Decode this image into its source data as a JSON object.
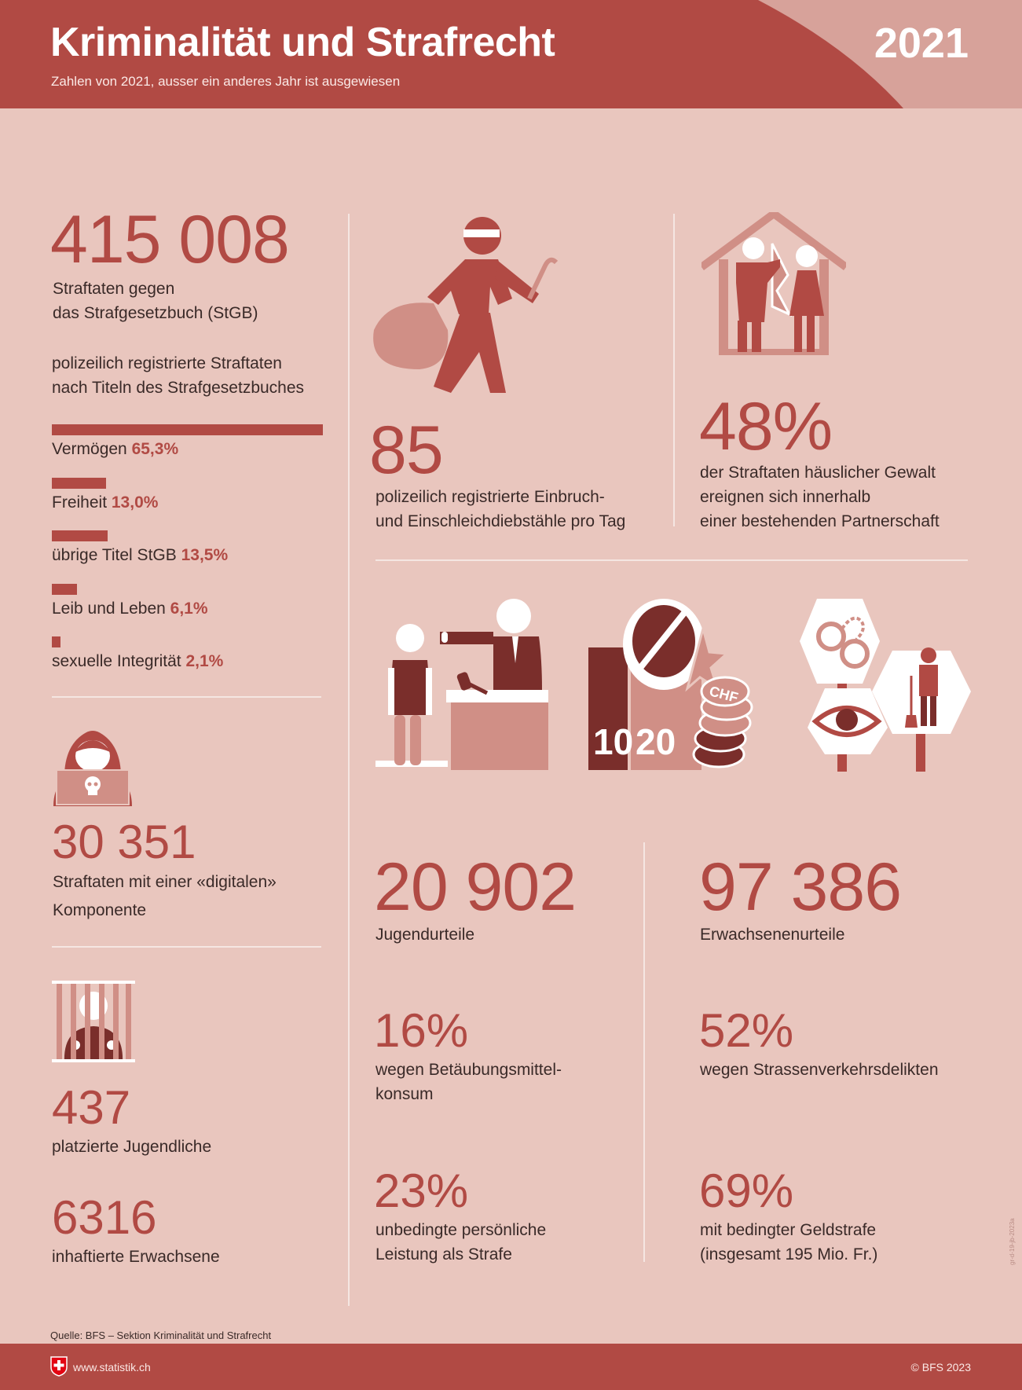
{
  "header": {
    "title": "Kriminalität und Strafrecht",
    "subtitle": "Zahlen von 2021, ausser ein anderes Jahr ist ausgewiesen",
    "year": "2021"
  },
  "colors": {
    "accent": "#b14a44",
    "dark": "#7a2e2b",
    "light": "#d08f86",
    "background": "#e9c6be"
  },
  "offenses": {
    "value": "415 008",
    "label_line1": "Straftaten gegen",
    "label_line2": "das Strafgesetzbuch (StGB)",
    "intro_line1": "polizeilich registrierte Straftaten",
    "intro_line2": "nach Titeln des Strafgesetzbuches",
    "bars": [
      {
        "label": "Vermögen",
        "value_label": "65,3%",
        "value": 65.3
      },
      {
        "label": "Freiheit",
        "value_label": "13,0%",
        "value": 13.0
      },
      {
        "label": "übrige Titel StGB",
        "value_label": "13,5%",
        "value": 13.5
      },
      {
        "label": "Leib und Leben",
        "value_label": "6,1%",
        "value": 6.1
      },
      {
        "label": "sexuelle Integrität",
        "value_label": "2,1%",
        "value": 2.1
      }
    ]
  },
  "digital": {
    "icon": "hacker-icon",
    "value": "30 351",
    "line1": "Straftaten mit einer «digitalen»",
    "line2": "Komponente"
  },
  "youth_placed": {
    "icon": "prison-bars-icon",
    "value": "437",
    "label": "platzierte Jugendliche"
  },
  "adults_jailed": {
    "value": "6316",
    "label": "inhaftierte Erwachsene"
  },
  "burglary": {
    "icon": "burglar-icon",
    "value": "85",
    "line1": "polizeilich registrierte Einbruch-",
    "line2": "und Einschleichdiebstähle pro Tag"
  },
  "domestic": {
    "icon": "domestic-violence-icon",
    "value": "48%",
    "line1": "der Straftaten häuslicher Gewalt",
    "line2": "ereignen sich innerhalb",
    "line3": "einer bestehenden Partnerschaft"
  },
  "icons_row": {
    "fine_numbers": [
      "10",
      "20"
    ],
    "coin_label": "CHF"
  },
  "youth_judgments": {
    "value": "20 902",
    "label": "Jugendurteile",
    "stat1": {
      "value": "16%",
      "line1": "wegen Betäubungsmittel-",
      "line2": "konsum"
    },
    "stat2": {
      "value": "23%",
      "line1": "unbedingte persönliche",
      "line2": "Leistung als Strafe"
    }
  },
  "adult_judgments": {
    "value": "97 386",
    "label": "Erwachsenenurteile",
    "stat1": {
      "value": "52%",
      "line1": "wegen Strassenverkehrsdelikten"
    },
    "stat2": {
      "value": "69%",
      "line1": "mit bedingter Geldstrafe",
      "line2": "(insgesamt 195 Mio. Fr.)"
    }
  },
  "source": "Quelle: BFS – Sektion Kriminalität und Strafrecht",
  "doc_code": "gr-d-19-jb-2023a",
  "footer": {
    "website": "www.statistik.ch",
    "copyright": "© BFS 2023"
  }
}
